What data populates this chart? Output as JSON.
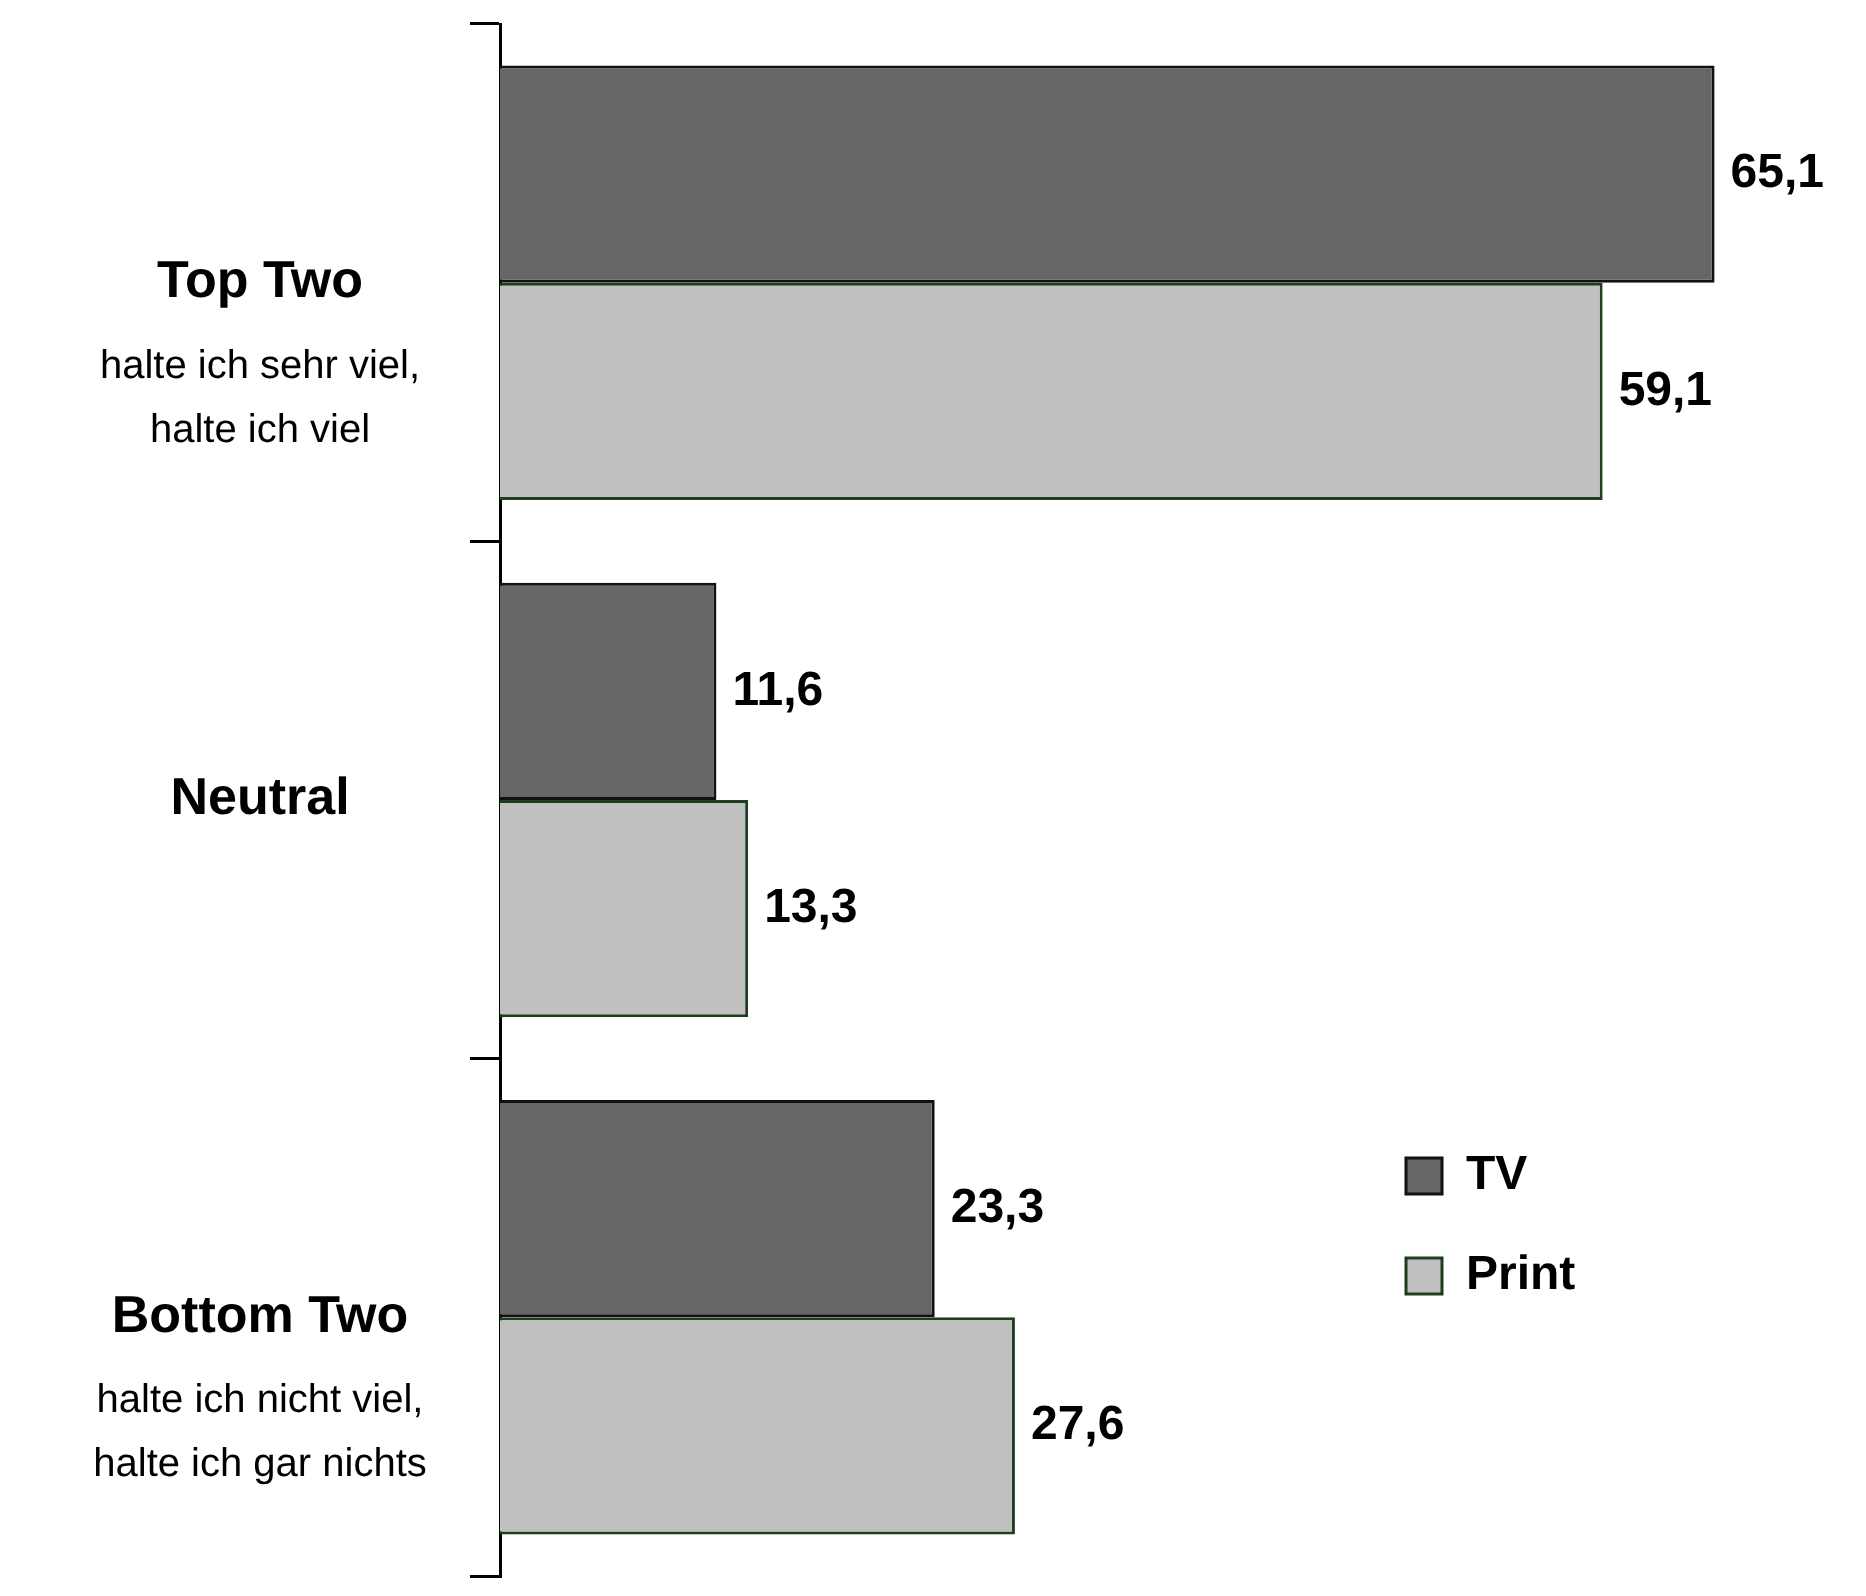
{
  "chart_data": {
    "type": "bar",
    "orientation": "horizontal",
    "categories": [
      "Top Two\nhalte ich sehr viel,\nhalte ich viel",
      "Neutral",
      "Bottom Two\nhalte ich nicht viel,\nhalte ich gar nichts"
    ],
    "series": [
      {
        "name": "TV",
        "color": "#666666",
        "values": [
          65.1,
          11.6,
          23.3
        ],
        "value_labels": [
          "65,1",
          "11,6",
          "23,3"
        ]
      },
      {
        "name": "Print",
        "color": "#c0c0c0",
        "values": [
          59.1,
          13.3,
          27.6
        ],
        "value_labels": [
          "59,1",
          "13,3",
          "27,6"
        ]
      }
    ],
    "legend": "bottom right",
    "grid": false
  }
}
